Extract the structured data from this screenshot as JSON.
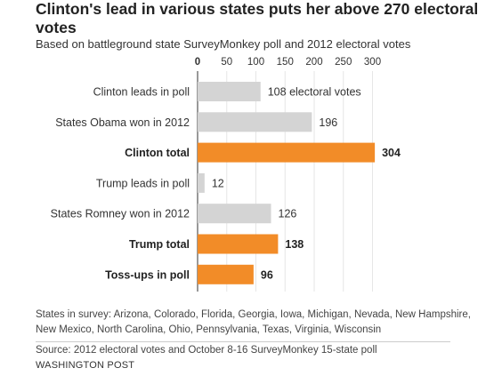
{
  "header": {
    "title": "Clinton's lead in various states puts her above 270 electoral votes",
    "subtitle": "Based on battleground state SurveyMonkey poll and 2012 electoral votes"
  },
  "chart_data": {
    "type": "bar",
    "orientation": "horizontal",
    "xlim": [
      0,
      300
    ],
    "ticks": [
      0,
      50,
      100,
      150,
      200,
      250,
      300
    ],
    "tick_labels": [
      "0",
      "50",
      "100",
      "150",
      "200",
      "250",
      "300"
    ],
    "grid": true,
    "categories": [
      "Clinton leads in poll",
      "States Obama won in 2012",
      "Clinton total",
      "Trump leads in poll",
      "States Romney won in 2012",
      "Trump total",
      "Toss-ups in poll"
    ],
    "values": [
      108,
      196,
      304,
      12,
      126,
      138,
      96
    ],
    "value_labels": [
      "108 electoral votes",
      "196",
      "304",
      "12",
      "126",
      "138",
      "96"
    ],
    "highlight": [
      false,
      false,
      true,
      false,
      false,
      true,
      true
    ],
    "colors": {
      "default": "#d4d4d4",
      "highlight": "#f28c28"
    }
  },
  "footer": {
    "note": "States in survey: Arizona, Colorado, Florida, Georgia, Iowa, Michigan, Nevada, New Hampshire, New Mexico, North Carolina, Ohio, Pennsylvania, Texas, Virginia, Wisconsin",
    "source": "Source: 2012 electoral votes and October 8-16 SurveyMonkey 15-state poll",
    "credit": "WASHINGTON POST"
  }
}
